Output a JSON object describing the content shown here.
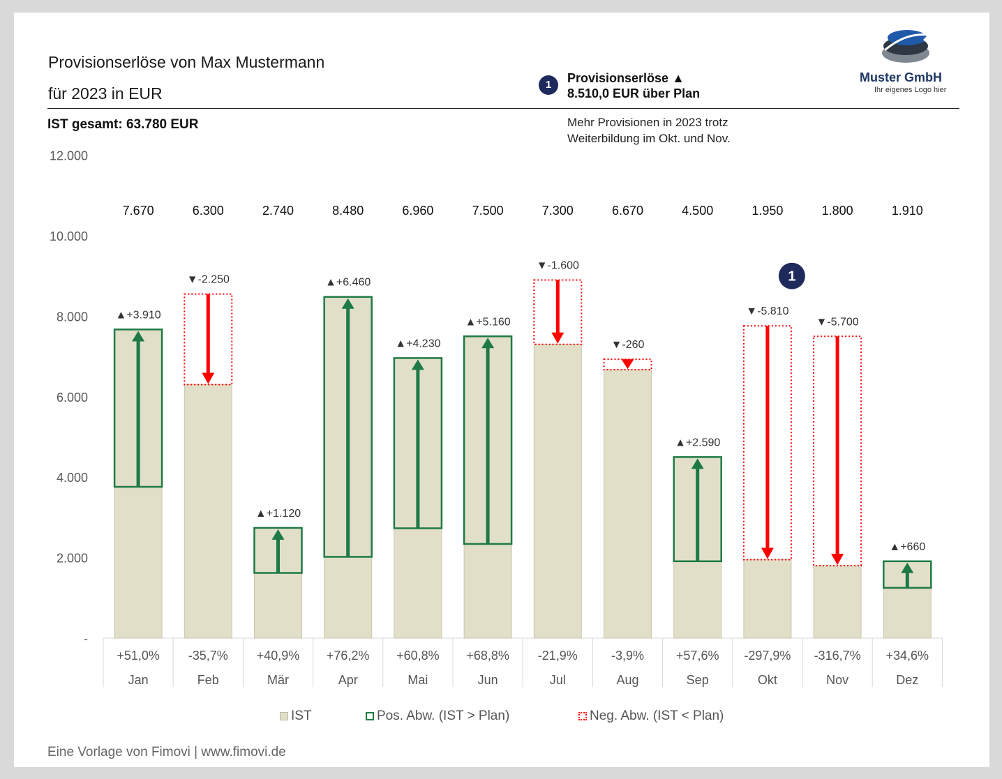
{
  "header": {
    "title_line1": "Provisionserlöse von Max Mustermann",
    "title_line2": "für 2023 in EUR",
    "total": "IST gesamt: 63.780 EUR"
  },
  "highlight": {
    "badge": "1",
    "line1": "Provisionserlöse ▲",
    "line2": "8.510,0 EUR über Plan",
    "note": "Mehr Provisionen in 2023 trotz Weiterbildung im Okt. und Nov."
  },
  "logo": {
    "name": "Muster GmbH",
    "tagline": "Ihr eigenes Logo hier"
  },
  "legend": {
    "ist": "IST",
    "pos": "Pos. Abw. (IST > Plan)",
    "neg": "Neg. Abw. (IST < Plan)"
  },
  "footer": "Eine Vorlage von Fimovi  |  www.fimovi.de",
  "colors": {
    "ist_fill": "#e1dfc8",
    "positive": "#1e7a45",
    "negative": "#ff0000",
    "badge": "#1f2a5c"
  },
  "chart_data": {
    "type": "bar",
    "categories": [
      "Jan",
      "Feb",
      "Mär",
      "Apr",
      "Mai",
      "Jun",
      "Jul",
      "Aug",
      "Sep",
      "Okt",
      "Nov",
      "Dez"
    ],
    "ist": [
      7670,
      6300,
      2740,
      8480,
      6960,
      7500,
      7300,
      6670,
      4500,
      1950,
      1800,
      1910
    ],
    "ist_labels": [
      "7.670",
      "6.300",
      "2.740",
      "8.480",
      "6.960",
      "7.500",
      "7.300",
      "6.670",
      "4.500",
      "1.950",
      "1.800",
      "1.910"
    ],
    "deviation": [
      3910,
      -2250,
      1120,
      6460,
      4230,
      5160,
      -1600,
      -260,
      2590,
      -5810,
      -5700,
      660
    ],
    "deviation_labels": [
      "▲+3.910",
      "▼-2.250",
      "▲+1.120",
      "▲+6.460",
      "▲+4.230",
      "▲+5.160",
      "▼-1.600",
      "▼-260",
      "▲+2.590",
      "▼-5.810",
      "▼-5.700",
      "▲+660"
    ],
    "deviation_pct": [
      "+51,0%",
      "-35,7%",
      "+40,9%",
      "+76,2%",
      "+60,8%",
      "+68,8%",
      "-21,9%",
      "-3,9%",
      "+57,6%",
      "-297,9%",
      "-316,7%",
      "+34,6%"
    ],
    "y_ticks": [
      0,
      2000,
      4000,
      6000,
      8000,
      10000,
      12000
    ],
    "y_tick_labels": [
      "-",
      "2.000",
      "4.000",
      "6.000",
      "8.000",
      "10.000",
      "12.000"
    ],
    "ylim": [
      0,
      12000
    ],
    "grid": false,
    "annotation": {
      "label": "1",
      "category": "Okt",
      "value": 9000
    },
    "legend_position": "bottom"
  }
}
